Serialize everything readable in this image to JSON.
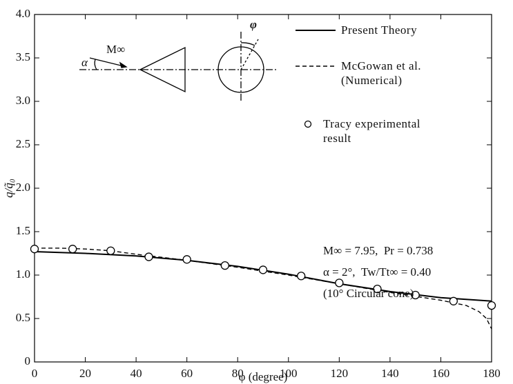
{
  "chart_data": {
    "type": "line",
    "xlabel": "φ (degree)",
    "ylabel": "q/q̃₀",
    "xlim": [
      0,
      180
    ],
    "xticks": [
      0,
      20,
      40,
      60,
      80,
      100,
      120,
      140,
      160,
      180
    ],
    "ylim": [
      0,
      4.0
    ],
    "yticks": [
      0,
      0.5,
      {
        "value": 1.0,
        "label": "1.0"
      },
      1.5,
      {
        "value": 2.0,
        "label": "2.0"
      },
      2.5,
      {
        "value": 3.0,
        "label": "3.0"
      },
      3.5,
      {
        "value": 4.0,
        "label": "4.0"
      }
    ],
    "series": [
      {
        "name": "Present Theory",
        "color": "#000000",
        "style": "solid",
        "x": [
          0,
          20,
          40,
          60,
          80,
          100,
          120,
          140,
          160,
          180
        ],
        "values": [
          1.27,
          1.25,
          1.22,
          1.17,
          1.1,
          1.01,
          0.9,
          0.81,
          0.74,
          0.7
        ]
      },
      {
        "name": "McGowan et al.\n(Numerical)",
        "color": "#000000",
        "style": "dashed",
        "x": [
          0,
          10,
          20,
          30,
          40,
          60,
          80,
          100,
          120,
          140,
          160,
          170,
          175,
          178,
          180
        ],
        "values": [
          1.31,
          1.31,
          1.3,
          1.28,
          1.24,
          1.17,
          1.09,
          1.0,
          0.9,
          0.8,
          0.71,
          0.65,
          0.58,
          0.5,
          0.38
        ]
      },
      {
        "name": "Tracy experimental\nresult",
        "color": "#000000",
        "style": "marker",
        "x": [
          0,
          15,
          30,
          45,
          60,
          75,
          90,
          105,
          120,
          135,
          150,
          165,
          180
        ],
        "values": [
          1.3,
          1.3,
          1.28,
          1.21,
          1.18,
          1.11,
          1.06,
          0.99,
          0.91,
          0.84,
          0.77,
          0.7,
          0.65
        ]
      }
    ],
    "annotations": [
      "M∞ = 7.95,  Pr = 0.738",
      "α = 2°,  Tw/Tt∞ = 0.40",
      "(10° Circular cone)"
    ],
    "diagram_labels": [
      "M∞",
      "α",
      "φ"
    ]
  }
}
